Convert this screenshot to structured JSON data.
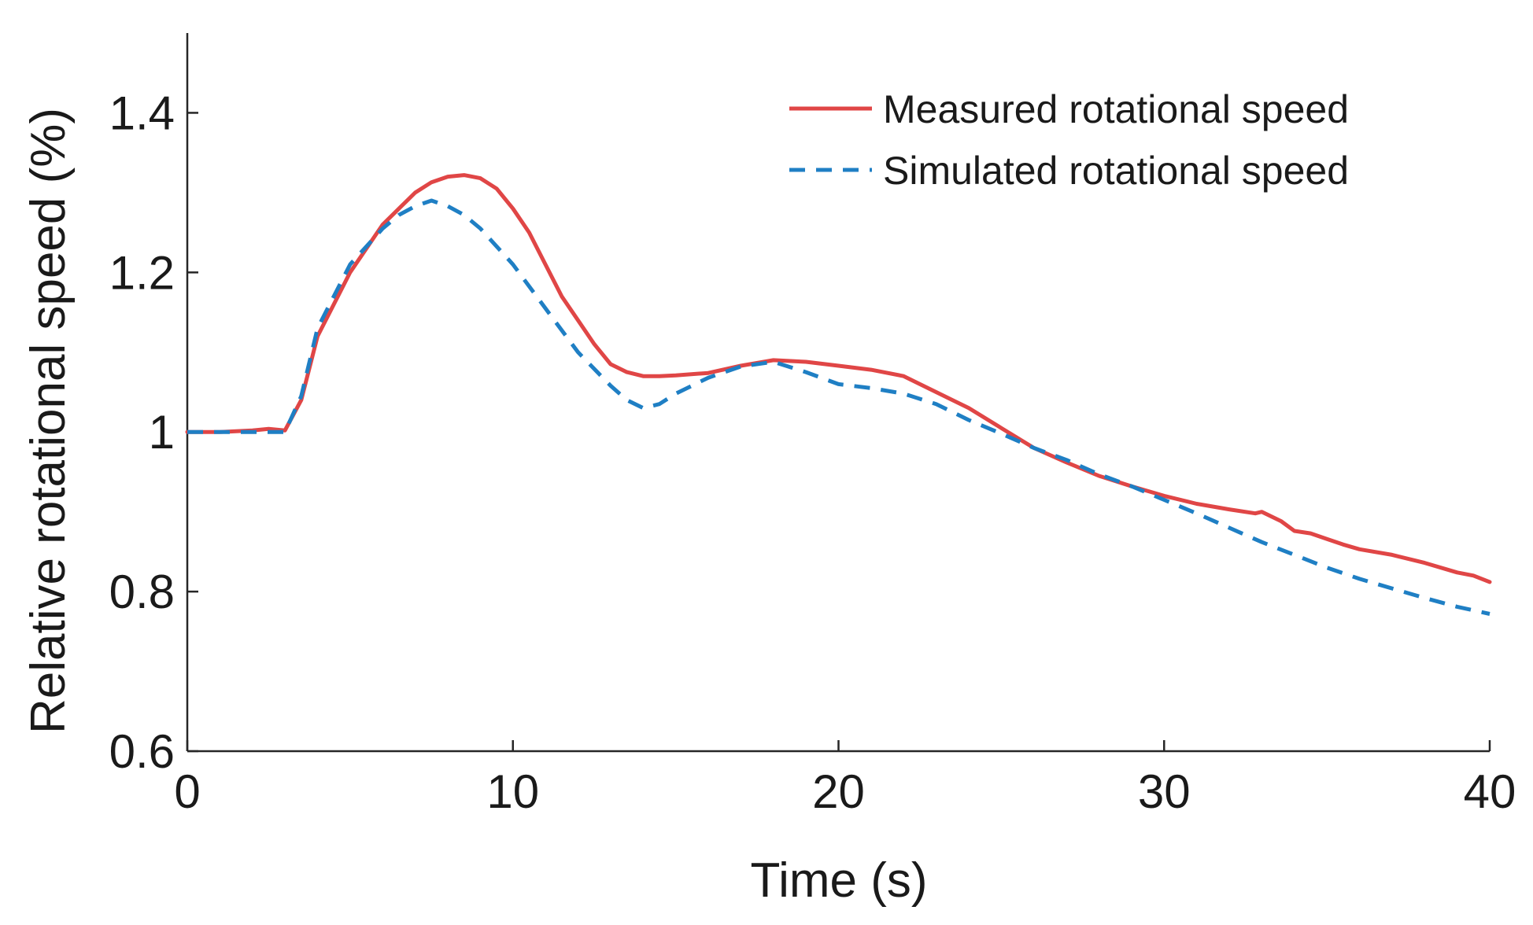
{
  "chart_data": {
    "type": "line",
    "title": "",
    "xlabel": "Time (s)",
    "ylabel": "Relative rotational speed (%)",
    "xlim": [
      0,
      40
    ],
    "ylim": [
      0.6,
      1.5
    ],
    "xticks": [
      0,
      10,
      20,
      30,
      40
    ],
    "xtick_labels": [
      "0",
      "10",
      "20",
      "30",
      "40"
    ],
    "yticks": [
      0.6,
      0.8,
      1.0,
      1.2,
      1.4
    ],
    "ytick_labels": [
      "0.6",
      "0.8",
      "1",
      "1.2",
      "1.4"
    ],
    "grid": false,
    "legend_position": "top-right",
    "series": [
      {
        "name": "Measured rotational speed",
        "color": "#e04646",
        "style": "solid",
        "x": [
          0,
          1,
          2,
          2.5,
          3.0,
          3.5,
          4,
          5,
          6,
          7,
          7.5,
          8,
          8.5,
          9,
          9.5,
          10,
          10.5,
          11,
          11.5,
          12,
          12.5,
          13,
          13.5,
          14,
          14.5,
          15,
          16,
          17,
          18,
          19,
          20,
          21,
          22,
          23,
          24,
          25,
          26,
          27,
          28,
          29,
          30,
          31,
          32,
          32.8,
          33,
          33.3,
          33.6,
          34,
          34.5,
          35,
          35.5,
          36,
          37,
          38,
          39,
          39.5,
          40
        ],
        "y": [
          1.0,
          1.0,
          1.002,
          1.004,
          1.002,
          1.04,
          1.12,
          1.2,
          1.26,
          1.3,
          1.313,
          1.32,
          1.322,
          1.318,
          1.305,
          1.28,
          1.25,
          1.21,
          1.17,
          1.14,
          1.11,
          1.085,
          1.075,
          1.07,
          1.07,
          1.071,
          1.074,
          1.083,
          1.09,
          1.088,
          1.083,
          1.078,
          1.07,
          1.05,
          1.03,
          1.005,
          0.98,
          0.962,
          0.945,
          0.932,
          0.92,
          0.91,
          0.903,
          0.898,
          0.9,
          0.894,
          0.888,
          0.876,
          0.873,
          0.866,
          0.859,
          0.853,
          0.846,
          0.836,
          0.824,
          0.82,
          0.812
        ]
      },
      {
        "name": "Simulated rotational speed",
        "color": "#1f7fc4",
        "style": "dashed",
        "x": [
          0,
          1,
          2,
          2.5,
          3.0,
          3.5,
          4,
          5,
          6,
          6.5,
          7,
          7.5,
          8,
          8.5,
          9,
          10,
          11,
          12,
          13,
          13.5,
          14,
          14.5,
          15,
          16,
          17,
          18,
          19,
          20,
          21,
          22,
          23,
          24,
          25,
          26,
          27,
          28,
          29,
          30,
          31,
          32,
          33,
          34,
          35,
          36,
          37,
          38,
          39,
          40
        ],
        "y": [
          1.0,
          1.0,
          1.0,
          1.0,
          1.0,
          1.045,
          1.13,
          1.21,
          1.255,
          1.272,
          1.283,
          1.29,
          1.283,
          1.272,
          1.255,
          1.21,
          1.155,
          1.1,
          1.058,
          1.04,
          1.03,
          1.035,
          1.048,
          1.068,
          1.082,
          1.088,
          1.075,
          1.06,
          1.055,
          1.048,
          1.035,
          1.015,
          0.998,
          0.98,
          0.965,
          0.947,
          0.932,
          0.915,
          0.898,
          0.88,
          0.862,
          0.846,
          0.83,
          0.816,
          0.804,
          0.792,
          0.781,
          0.772
        ]
      }
    ]
  }
}
